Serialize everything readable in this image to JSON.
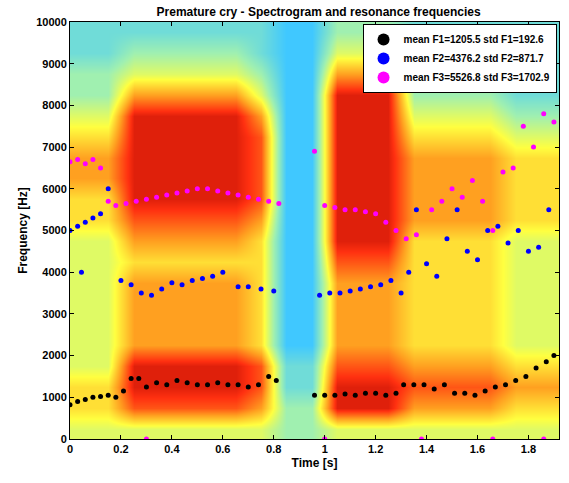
{
  "chart_data": {
    "type": "scatter",
    "title": "Premature cry - Spectrogram and resonance frequencies",
    "x_label": "Time [s]",
    "y_label": "Frequency [Hz]",
    "xlim": [
      0,
      1.92
    ],
    "xticks": [
      0,
      0.2,
      0.4,
      0.6,
      0.8,
      1,
      1.2,
      1.4,
      1.6,
      1.8
    ],
    "ylim": [
      0,
      10000
    ],
    "yticks": [
      0,
      1000,
      2000,
      3000,
      4000,
      5000,
      6000,
      7000,
      8000,
      9000,
      10000
    ],
    "grid": false,
    "legend": "top right",
    "spectrogram": {
      "x": [
        0.05,
        0.15,
        0.25,
        0.35,
        0.45,
        0.55,
        0.65,
        0.75,
        0.85,
        0.95,
        1.05,
        1.15,
        1.25,
        1.35,
        1.45,
        1.55,
        1.65,
        1.75,
        1.85,
        1.95
      ],
      "y": [
        250,
        750,
        1250,
        1750,
        2250,
        2750,
        3250,
        3750,
        4250,
        4750,
        5250,
        5750,
        6250,
        6750,
        7250,
        7750,
        8250,
        8750,
        9250,
        9750
      ],
      "zlim": [
        0,
        10
      ],
      "cells": [
        [
          5,
          5,
          5,
          5,
          5,
          5,
          5,
          5,
          4,
          4,
          5,
          5,
          5,
          5,
          5,
          5,
          5,
          5,
          5,
          5
        ],
        [
          6,
          6,
          8,
          8,
          8,
          8,
          8,
          7,
          4,
          4,
          9,
          9,
          9,
          7,
          7,
          7,
          7,
          6,
          6,
          6
        ],
        [
          6,
          6,
          9,
          9,
          9,
          9,
          9,
          8,
          3,
          3,
          9,
          9,
          9,
          8,
          8,
          8,
          8,
          7,
          7,
          7
        ],
        [
          5,
          5,
          9,
          9,
          9,
          9,
          9,
          8,
          3,
          3,
          8,
          8,
          8,
          7,
          7,
          7,
          7,
          6,
          6,
          6
        ],
        [
          5,
          5,
          7,
          7,
          7,
          7,
          7,
          6,
          2,
          2,
          7,
          7,
          7,
          6,
          6,
          6,
          6,
          5,
          5,
          5
        ],
        [
          5,
          5,
          7,
          7,
          7,
          7,
          7,
          6,
          2,
          2,
          7,
          7,
          7,
          6,
          6,
          6,
          6,
          5,
          5,
          5
        ],
        [
          5,
          5,
          7,
          7,
          7,
          7,
          7,
          6,
          2,
          2,
          7,
          7,
          7,
          6,
          6,
          6,
          6,
          5,
          5,
          5
        ],
        [
          5,
          5,
          7,
          7,
          7,
          7,
          7,
          6,
          2,
          2,
          7,
          7,
          7,
          6,
          6,
          6,
          6,
          5,
          5,
          5
        ],
        [
          5,
          5,
          6,
          6,
          6,
          6,
          6,
          6,
          2,
          2,
          8,
          8,
          8,
          6,
          6,
          6,
          6,
          5,
          5,
          5
        ],
        [
          5,
          5,
          7,
          7,
          7,
          7,
          7,
          6,
          2,
          2,
          9,
          9,
          9,
          6,
          6,
          6,
          6,
          5,
          5,
          5
        ],
        [
          6,
          6,
          8,
          8,
          8,
          8,
          8,
          7,
          2,
          2,
          9,
          9,
          9,
          7,
          7,
          7,
          7,
          6,
          6,
          6
        ],
        [
          6,
          6,
          9,
          9,
          9,
          9,
          9,
          8,
          2,
          2,
          9,
          9,
          9,
          7,
          7,
          7,
          7,
          6,
          6,
          6
        ],
        [
          7,
          7,
          9,
          9,
          9,
          9,
          9,
          8,
          2,
          2,
          9,
          9,
          9,
          7,
          7,
          7,
          7,
          6,
          6,
          6
        ],
        [
          7,
          7,
          9,
          9,
          9,
          9,
          9,
          8,
          2,
          2,
          9,
          9,
          9,
          7,
          7,
          7,
          7,
          6,
          6,
          6
        ],
        [
          6,
          6,
          9,
          9,
          9,
          9,
          9,
          8,
          2,
          2,
          9,
          9,
          9,
          6,
          6,
          6,
          6,
          5,
          5,
          5
        ],
        [
          5,
          5,
          9,
          9,
          9,
          9,
          9,
          7,
          2,
          2,
          9,
          9,
          9,
          5,
          5,
          5,
          5,
          4,
          4,
          4
        ],
        [
          4,
          4,
          7,
          7,
          7,
          7,
          7,
          5,
          2,
          2,
          9,
          9,
          9,
          4,
          4,
          4,
          4,
          3,
          3,
          3
        ],
        [
          4,
          4,
          5,
          5,
          5,
          5,
          5,
          4,
          2,
          2,
          7,
          7,
          7,
          4,
          4,
          4,
          4,
          3,
          3,
          3
        ],
        [
          3,
          3,
          4,
          4,
          4,
          4,
          4,
          3,
          2,
          2,
          5,
          5,
          5,
          3,
          3,
          3,
          3,
          3,
          3,
          3
        ],
        [
          3,
          3,
          3,
          3,
          3,
          3,
          3,
          3,
          2,
          2,
          4,
          4,
          4,
          3,
          3,
          3,
          3,
          3,
          3,
          3
        ]
      ]
    },
    "series": [
      {
        "name": "mean F1=1205.5 std F1=192.6",
        "color": "#000000",
        "marker": "circle",
        "x": [
          0,
          0.03,
          0.06,
          0.09,
          0.12,
          0.15,
          0.18,
          0.21,
          0.24,
          0.27,
          0.3,
          0.34,
          0.38,
          0.42,
          0.46,
          0.5,
          0.54,
          0.58,
          0.62,
          0.66,
          0.7,
          0.74,
          0.78,
          0.81,
          0.96,
          1.0,
          1.04,
          1.08,
          1.12,
          1.16,
          1.2,
          1.24,
          1.28,
          1.31,
          1.35,
          1.39,
          1.43,
          1.47,
          1.51,
          1.55,
          1.59,
          1.63,
          1.67,
          1.71,
          1.75,
          1.79,
          1.83,
          1.87,
          1.9
        ],
        "values": [
          820,
          900,
          950,
          1000,
          1020,
          1050,
          1000,
          1150,
          1450,
          1450,
          1250,
          1350,
          1300,
          1400,
          1350,
          1300,
          1300,
          1350,
          1300,
          1300,
          1250,
          1300,
          1500,
          1400,
          1050,
          1050,
          1050,
          1080,
          1050,
          1100,
          1100,
          1050,
          1100,
          1300,
          1300,
          1300,
          1200,
          1300,
          1100,
          1100,
          1050,
          1150,
          1250,
          1300,
          1400,
          1500,
          1700,
          1850,
          2000
        ]
      },
      {
        "name": "mean F2=4376.2 std F2=871.7",
        "color": "#0000ff",
        "marker": "circle",
        "x": [
          0,
          0.03,
          0.045,
          0.06,
          0.09,
          0.12,
          0.15,
          0.2,
          0.24,
          0.28,
          0.32,
          0.36,
          0.4,
          0.44,
          0.48,
          0.52,
          0.56,
          0.6,
          0.66,
          0.7,
          0.75,
          0.8,
          0.98,
          1.02,
          1.06,
          1.1,
          1.14,
          1.18,
          1.22,
          1.26,
          1.3,
          1.33,
          1.36,
          1.4,
          1.44,
          1.48,
          1.52,
          1.56,
          1.6,
          1.64,
          1.68,
          1.72,
          1.76,
          1.8,
          1.84,
          1.88
        ],
        "values": [
          5000,
          5100,
          4000,
          5200,
          5300,
          5400,
          6000,
          3800,
          3700,
          3500,
          3450,
          3600,
          3750,
          3700,
          3800,
          3850,
          3900,
          4000,
          3650,
          3650,
          3600,
          3550,
          3450,
          3500,
          3500,
          3550,
          3600,
          3650,
          3700,
          3800,
          3500,
          4000,
          5500,
          4200,
          3900,
          4800,
          5500,
          4500,
          4300,
          5000,
          5100,
          4700,
          5000,
          4500,
          4600,
          5500
        ]
      },
      {
        "name": "mean F3=5526.8 std F3=1702.9",
        "color": "#ff00ff",
        "marker": "circle",
        "x": [
          0,
          0.03,
          0.06,
          0.09,
          0.12,
          0.15,
          0.18,
          0.22,
          0.26,
          0.3,
          0.3,
          0.34,
          0.38,
          0.42,
          0.46,
          0.5,
          0.54,
          0.58,
          0.62,
          0.66,
          0.7,
          0.74,
          0.78,
          0.82,
          0.96,
          1.0,
          1.0,
          1.04,
          1.08,
          1.12,
          1.16,
          1.2,
          1.24,
          1.28,
          1.32,
          1.36,
          1.38,
          1.42,
          1.46,
          1.5,
          1.54,
          1.58,
          1.62,
          1.66,
          1.66,
          1.7,
          1.74,
          1.78,
          1.82,
          1.86,
          1.86,
          1.9
        ],
        "values": [
          6650,
          6700,
          6600,
          6700,
          6500,
          5700,
          5600,
          5650,
          5700,
          5750,
          0,
          5800,
          5850,
          5900,
          5950,
          6000,
          6000,
          5950,
          5900,
          5850,
          5800,
          5750,
          5700,
          5650,
          6900,
          5600,
          0,
          5550,
          5500,
          5500,
          5450,
          5400,
          5200,
          5000,
          4800,
          4900,
          0,
          5500,
          5700,
          6000,
          5800,
          6200,
          5700,
          5000,
          0,
          6400,
          6500,
          7500,
          7000,
          7800,
          0,
          7600
        ]
      }
    ]
  }
}
